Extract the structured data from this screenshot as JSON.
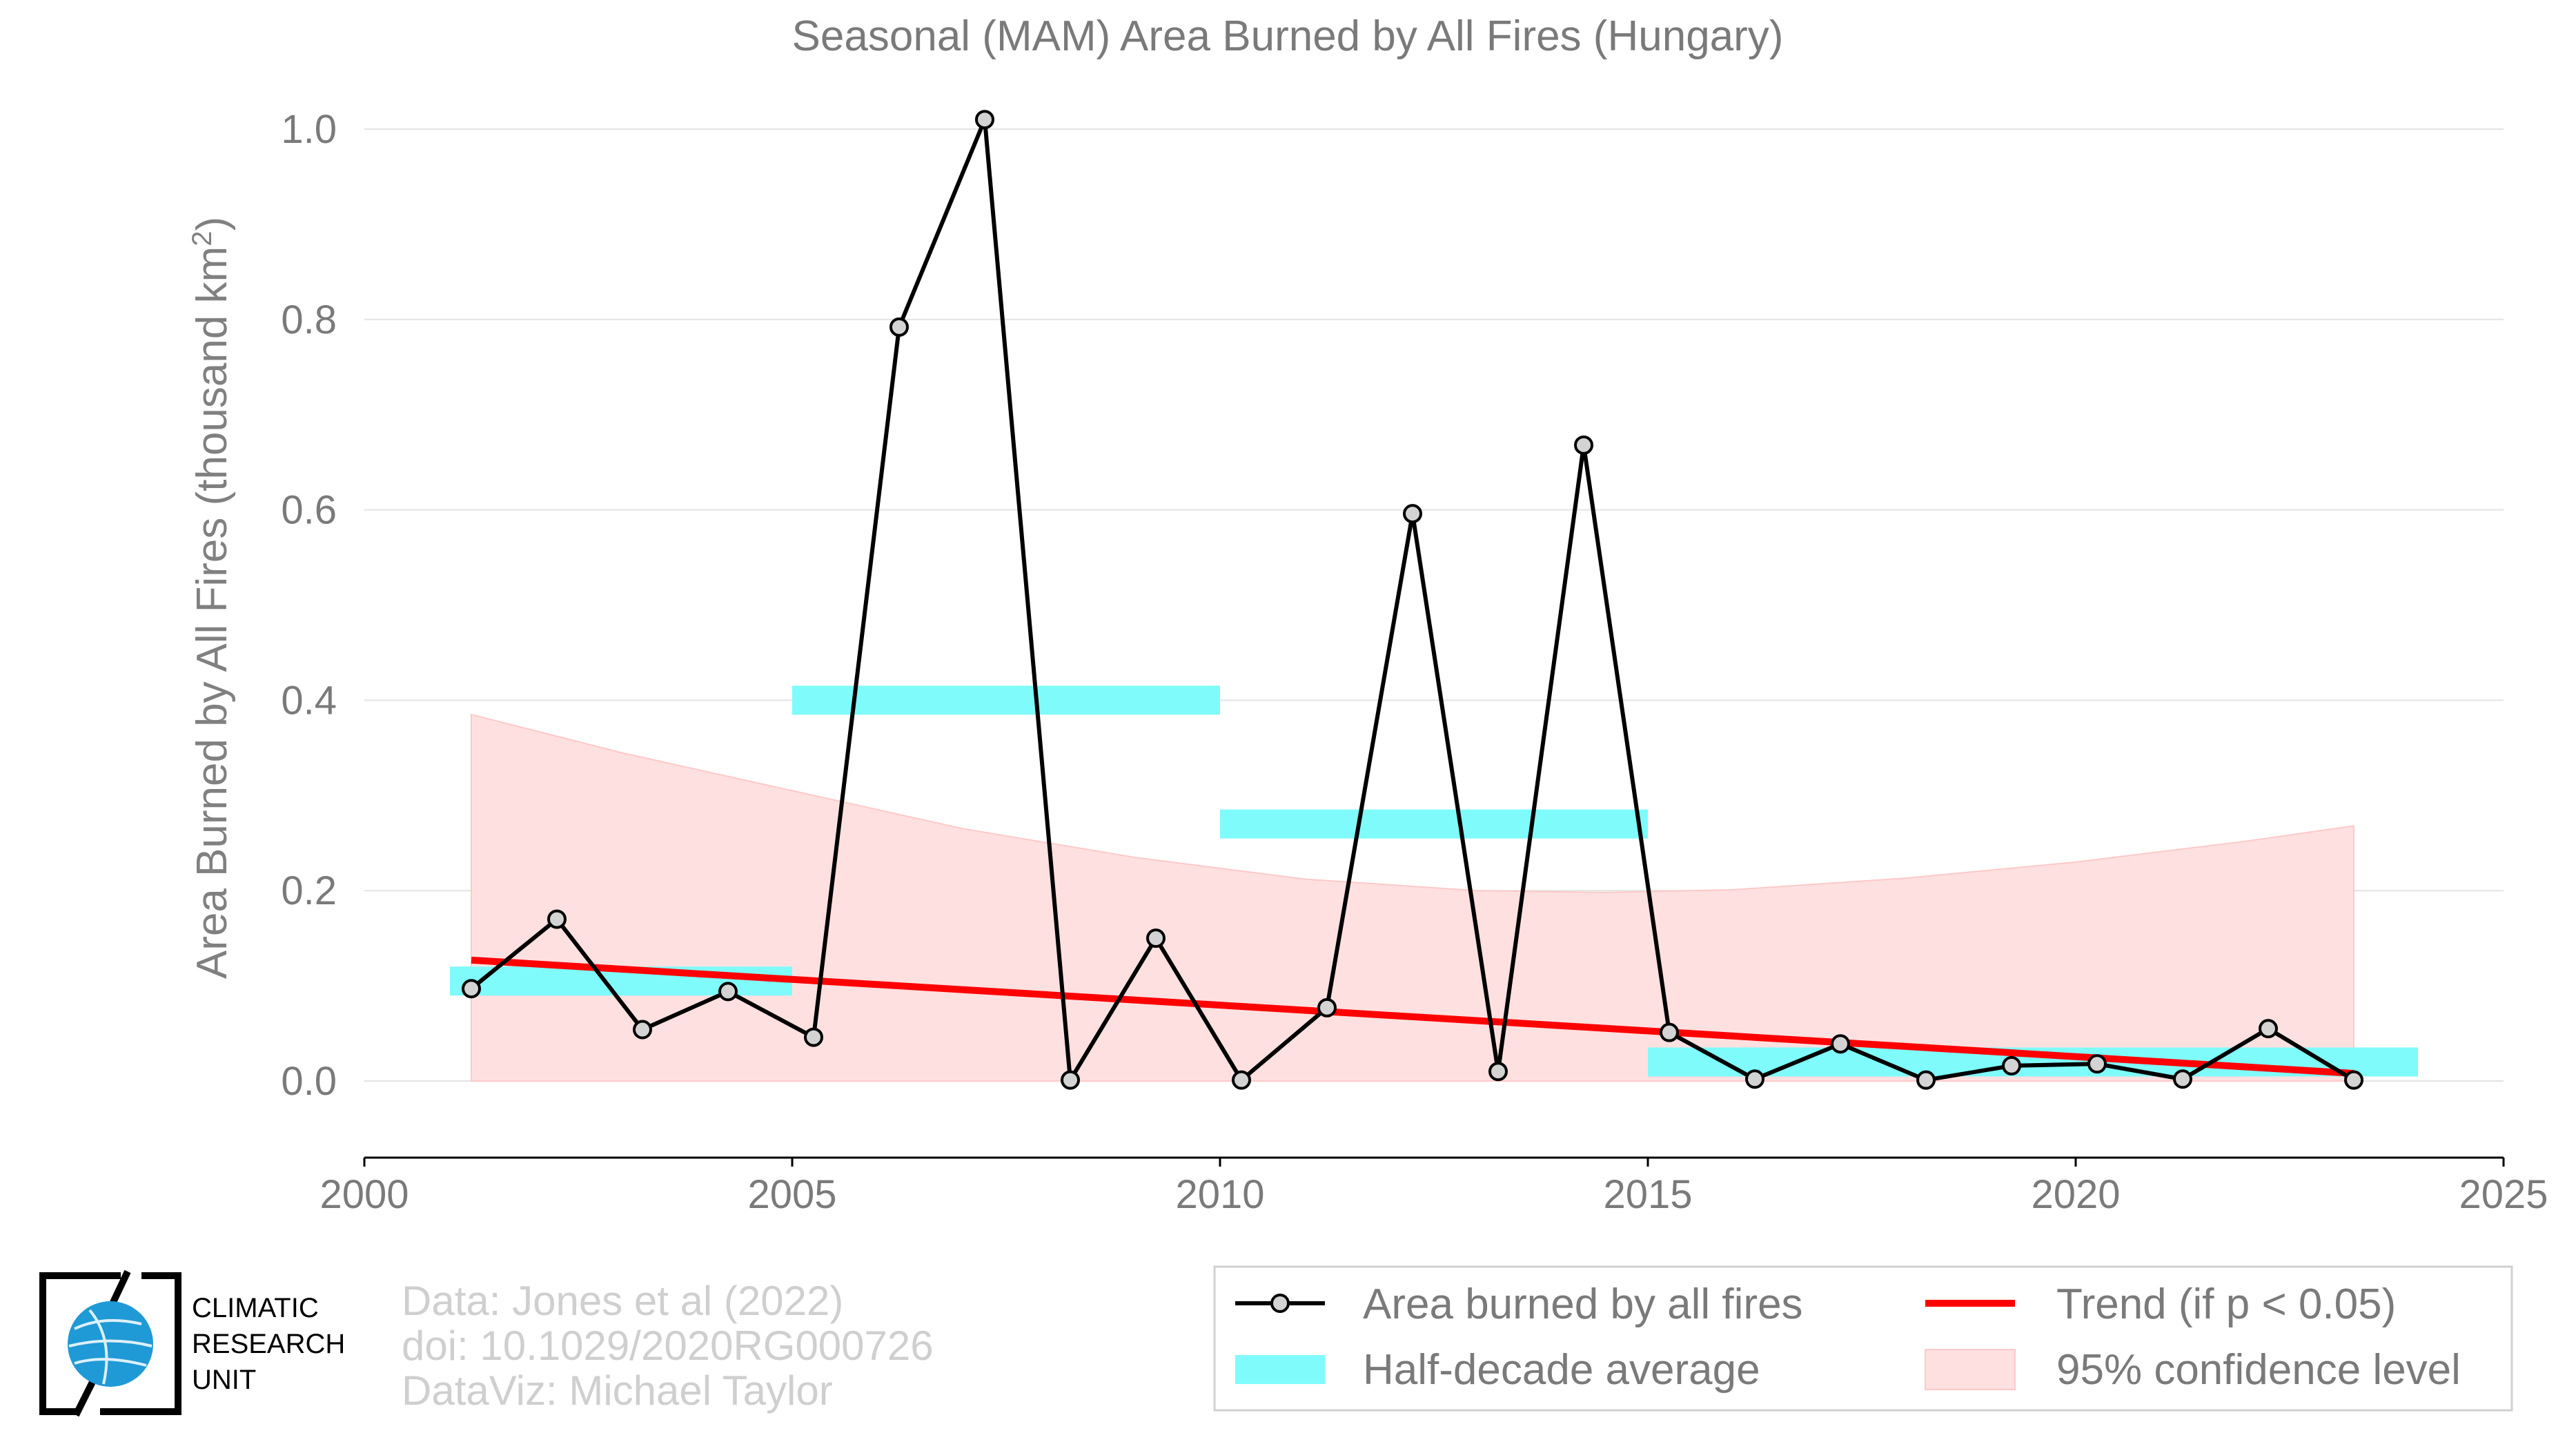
{
  "chart_data": {
    "type": "line",
    "title": "Seasonal (MAM) Area Burned by All Fires (Hungary)",
    "xlabel": "",
    "ylabel": "Area Burned by All Fires (thousand km",
    "ylabel_sup": "2",
    "ylabel_end": ")",
    "xlim": [
      2000,
      2025
    ],
    "ylim": [
      -0.08,
      1.04
    ],
    "x_ticks": [
      2000,
      2005,
      2010,
      2015,
      2020,
      2025
    ],
    "x_tick_labels": [
      "2000",
      "2005",
      "2010",
      "2015",
      "2020",
      "2025"
    ],
    "y_ticks": [
      0.0,
      0.2,
      0.4,
      0.6,
      0.8,
      1.0
    ],
    "y_tick_labels": [
      "0.0",
      "0.2",
      "0.4",
      "0.6",
      "0.8",
      "1.0"
    ],
    "grid": "horizontal",
    "series": [
      {
        "name": "Area burned by all fires",
        "color": "#000000",
        "marker_fill": "#d3d3d3",
        "x": [
          2001.25,
          2002.25,
          2003.25,
          2004.25,
          2005.25,
          2006.25,
          2007.25,
          2008.25,
          2009.25,
          2010.25,
          2011.25,
          2012.25,
          2013.25,
          2014.25,
          2015.25,
          2016.25,
          2017.25,
          2018.25,
          2019.25,
          2020.25,
          2021.25,
          2022.25,
          2023.25
        ],
        "values": [
          0.097,
          0.17,
          0.054,
          0.094,
          0.046,
          0.792,
          1.01,
          0.001,
          0.15,
          0.001,
          0.077,
          0.596,
          0.01,
          0.668,
          0.051,
          0.002,
          0.039,
          0.001,
          0.016,
          0.018,
          0.002,
          0.055,
          0.001
        ]
      },
      {
        "name": "Half-decade average",
        "color": "#7ffbfb",
        "segments": [
          {
            "x0": 2001.0,
            "x1": 2005.0,
            "value": 0.105
          },
          {
            "x0": 2005.0,
            "x1": 2010.0,
            "value": 0.4
          },
          {
            "x0": 2010.0,
            "x1": 2015.0,
            "value": 0.27
          },
          {
            "x0": 2015.0,
            "x1": 2024.0,
            "value": 0.02
          }
        ]
      },
      {
        "name": "Trend (if p < 0.05)",
        "color": "#ff0000",
        "x": [
          2001.25,
          2023.25
        ],
        "values": [
          0.127,
          0.008
        ]
      },
      {
        "name": "95% confidence level",
        "color": "#ffe0e0",
        "edge": "#ffc9c9",
        "x": [
          2001.25,
          2003.0,
          2005.0,
          2007.0,
          2009.0,
          2011.0,
          2013.0,
          2014.5,
          2016.0,
          2018.0,
          2020.0,
          2022.0,
          2023.25
        ],
        "upper": [
          0.385,
          0.345,
          0.305,
          0.265,
          0.235,
          0.212,
          0.2,
          0.198,
          0.201,
          0.213,
          0.23,
          0.252,
          0.268
        ],
        "lower": [
          0,
          0,
          0,
          0,
          0,
          0,
          0,
          0,
          0,
          0,
          0,
          0,
          0
        ]
      }
    ],
    "legend": {
      "placement": "bottom-right",
      "entries": [
        "Area burned by all fires",
        "Trend (if p < 0.05)",
        "Half-decade average",
        "95% confidence level"
      ]
    }
  },
  "credits": [
    "Data: Jones et al (2022)",
    "doi: 10.1029/2020RG000726",
    "DataViz: Michael Taylor"
  ],
  "logo": {
    "lines": [
      "CLIMATIC",
      "RESEARCH",
      "UNIT"
    ],
    "globe_color": "#1f9ad6"
  }
}
